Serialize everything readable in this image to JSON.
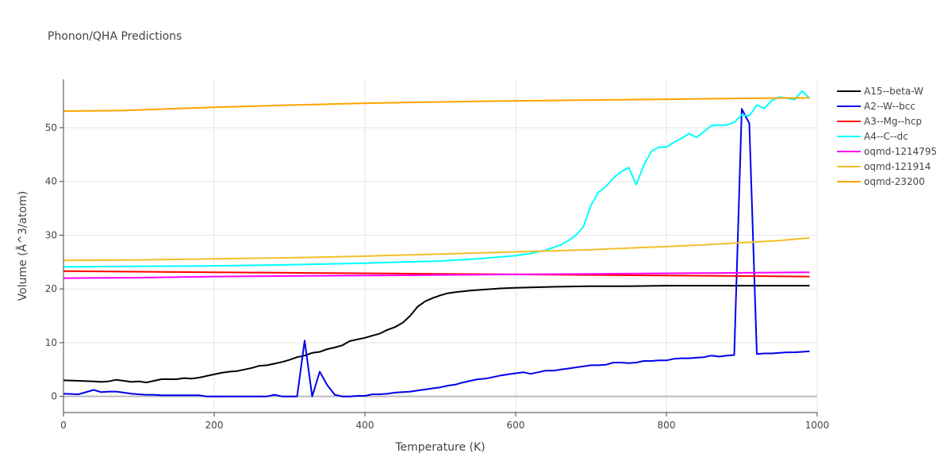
{
  "chart_data": {
    "type": "line",
    "title": "Phonon/QHA Predictions",
    "xlabel": "Temperature (K)",
    "ylabel": "Volume (Å^3/atom)",
    "xlim": [
      0,
      1000
    ],
    "ylim": [
      -3,
      59
    ],
    "x_ticks": [
      0,
      200,
      400,
      600,
      800,
      1000
    ],
    "x_tick_labels": [
      "0",
      "200",
      "400",
      "600",
      "800",
      "1000"
    ],
    "y_ticks": [
      0,
      10,
      20,
      30,
      40,
      50
    ],
    "y_tick_labels": [
      "0",
      "10",
      "20",
      "30",
      "40",
      "50"
    ],
    "grid": true,
    "legend_position": "right",
    "series": [
      {
        "name": "A15--beta-W",
        "color": "#000000",
        "x": [
          0,
          20,
          40,
          50,
          60,
          70,
          80,
          90,
          100,
          110,
          120,
          130,
          140,
          150,
          160,
          170,
          180,
          190,
          200,
          210,
          220,
          230,
          240,
          250,
          260,
          270,
          280,
          290,
          300,
          310,
          320,
          330,
          340,
          350,
          360,
          370,
          380,
          390,
          400,
          410,
          420,
          430,
          440,
          450,
          460,
          470,
          480,
          490,
          500,
          510,
          520,
          540,
          560,
          580,
          600,
          620,
          650,
          700,
          750,
          800,
          850,
          900,
          950,
          990
        ],
        "values": [
          3.0,
          2.9,
          2.8,
          2.7,
          2.8,
          3.1,
          2.9,
          2.7,
          2.8,
          2.6,
          2.9,
          3.2,
          3.2,
          3.2,
          3.4,
          3.3,
          3.5,
          3.8,
          4.1,
          4.4,
          4.6,
          4.7,
          5.0,
          5.3,
          5.7,
          5.8,
          6.1,
          6.4,
          6.8,
          7.3,
          7.6,
          8.1,
          8.3,
          8.8,
          9.1,
          9.5,
          10.3,
          10.6,
          10.9,
          11.3,
          11.7,
          12.4,
          12.9,
          13.7,
          15.0,
          16.7,
          17.7,
          18.3,
          18.8,
          19.2,
          19.4,
          19.7,
          19.9,
          20.1,
          20.2,
          20.3,
          20.4,
          20.5,
          20.5,
          20.6,
          20.6,
          20.6,
          20.6,
          20.6
        ]
      },
      {
        "name": "A2--W--bcc",
        "color": "#0000ee",
        "x": [
          0,
          20,
          40,
          50,
          60,
          70,
          80,
          90,
          100,
          110,
          120,
          130,
          140,
          150,
          160,
          170,
          180,
          190,
          200,
          220,
          240,
          250,
          260,
          270,
          280,
          290,
          300,
          310,
          320,
          330,
          340,
          350,
          360,
          370,
          380,
          390,
          400,
          410,
          420,
          430,
          440,
          450,
          460,
          470,
          480,
          490,
          500,
          510,
          520,
          530,
          540,
          550,
          560,
          570,
          580,
          590,
          600,
          610,
          620,
          630,
          640,
          650,
          660,
          670,
          680,
          690,
          700,
          710,
          720,
          730,
          740,
          750,
          760,
          770,
          780,
          790,
          800,
          810,
          820,
          830,
          840,
          850,
          860,
          870,
          880,
          890,
          900,
          910,
          920,
          930,
          940,
          950,
          960,
          970,
          980,
          990
        ],
        "values": [
          0.5,
          0.4,
          1.2,
          0.8,
          0.9,
          0.9,
          0.7,
          0.5,
          0.4,
          0.3,
          0.3,
          0.2,
          0.2,
          0.2,
          0.2,
          0.2,
          0.2,
          0.0,
          0.0,
          0.0,
          0.0,
          0.0,
          0.0,
          0.0,
          0.3,
          0.0,
          0.0,
          0.0,
          10.4,
          0.0,
          4.6,
          2.1,
          0.3,
          0.0,
          0.0,
          0.1,
          0.1,
          0.4,
          0.4,
          0.5,
          0.7,
          0.8,
          0.9,
          1.1,
          1.3,
          1.5,
          1.7,
          2.0,
          2.2,
          2.6,
          2.9,
          3.2,
          3.3,
          3.6,
          3.9,
          4.1,
          4.3,
          4.5,
          4.2,
          4.5,
          4.8,
          4.8,
          5.0,
          5.2,
          5.4,
          5.6,
          5.8,
          5.8,
          5.9,
          6.3,
          6.3,
          6.2,
          6.3,
          6.6,
          6.6,
          6.7,
          6.7,
          7.0,
          7.1,
          7.1,
          7.2,
          7.3,
          7.6,
          7.4,
          7.6,
          7.7,
          53.5,
          50.8,
          7.9,
          8.0,
          8.0,
          8.1,
          8.2,
          8.2,
          8.3,
          8.4
        ]
      },
      {
        "name": "A3--Mg--hcp",
        "color": "#ff0000",
        "x": [
          0,
          100,
          200,
          300,
          400,
          500,
          600,
          700,
          800,
          900,
          990
        ],
        "values": [
          23.3,
          23.2,
          23.1,
          23.0,
          22.9,
          22.8,
          22.7,
          22.6,
          22.5,
          22.4,
          22.3
        ]
      },
      {
        "name": "A4--C--dc",
        "color": "#00ffff",
        "x": [
          0,
          100,
          200,
          300,
          400,
          450,
          500,
          550,
          600,
          620,
          640,
          660,
          670,
          680,
          690,
          700,
          710,
          720,
          730,
          740,
          750,
          760,
          770,
          780,
          790,
          800,
          810,
          820,
          830,
          840,
          850,
          860,
          870,
          880,
          890,
          900,
          910,
          920,
          930,
          940,
          950,
          960,
          970,
          980,
          990
        ],
        "values": [
          24.1,
          24.2,
          24.3,
          24.5,
          24.8,
          25.0,
          25.2,
          25.6,
          26.2,
          26.6,
          27.2,
          28.2,
          29.0,
          30.0,
          31.6,
          35.6,
          38.0,
          39.1,
          40.7,
          41.8,
          42.6,
          39.4,
          43.0,
          45.6,
          46.4,
          46.4,
          47.3,
          48.0,
          48.9,
          48.2,
          49.3,
          50.4,
          50.5,
          50.5,
          51.0,
          52.4,
          52.2,
          54.2,
          53.6,
          55.1,
          55.7,
          55.5,
          55.2,
          56.8,
          55.5
        ]
      },
      {
        "name": "oqmd-1214795",
        "color": "#ff00ff",
        "x": [
          0,
          100,
          200,
          300,
          400,
          500,
          600,
          700,
          800,
          900,
          990
        ],
        "values": [
          22.0,
          22.1,
          22.3,
          22.4,
          22.5,
          22.6,
          22.7,
          22.8,
          22.9,
          23.0,
          23.1
        ]
      },
      {
        "name": "oqmd-121914",
        "color": "#f2bf2a",
        "x": [
          0,
          100,
          200,
          300,
          400,
          500,
          600,
          700,
          800,
          850,
          900,
          950,
          990
        ],
        "values": [
          25.3,
          25.4,
          25.6,
          25.8,
          26.1,
          26.5,
          26.9,
          27.3,
          27.9,
          28.2,
          28.6,
          29.0,
          29.5
        ]
      },
      {
        "name": "oqmd-23200",
        "color": "#ffa500",
        "x": [
          0,
          50,
          80,
          100,
          150,
          200,
          300,
          400,
          500,
          600,
          700,
          800,
          900,
          990
        ],
        "values": [
          53.1,
          53.15,
          53.2,
          53.3,
          53.55,
          53.8,
          54.2,
          54.55,
          54.8,
          55.0,
          55.15,
          55.3,
          55.45,
          55.55
        ]
      }
    ]
  }
}
